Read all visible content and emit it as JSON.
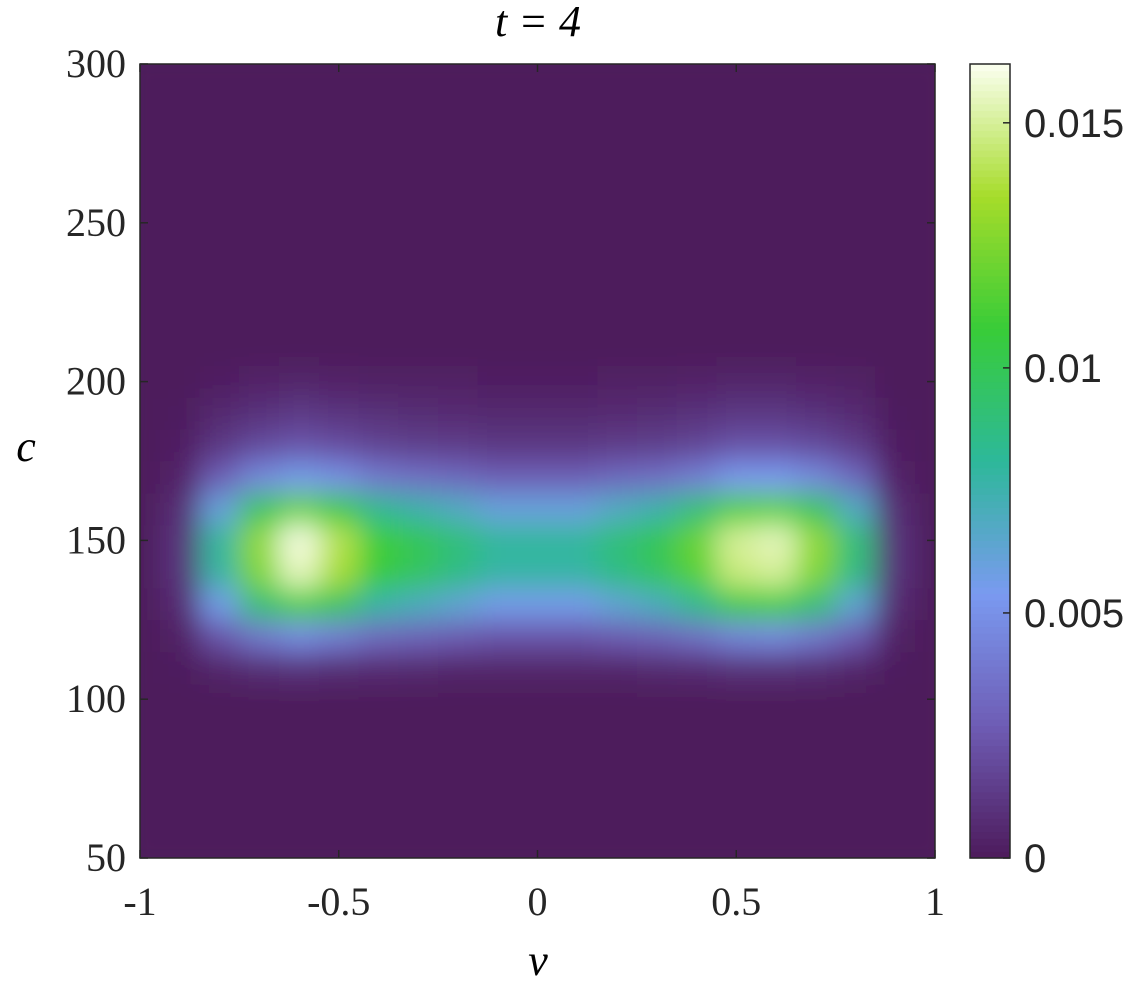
{
  "chart_data": {
    "type": "heatmap",
    "title": "t = 4",
    "xlabel": "v",
    "ylabel": "c",
    "x": [
      -1,
      -0.9,
      -0.8,
      -0.7,
      -0.6,
      -0.5,
      -0.4,
      -0.3,
      -0.2,
      -0.1,
      0,
      0.1,
      0.2,
      0.3,
      0.4,
      0.5,
      0.6,
      0.7,
      0.8,
      0.9,
      1
    ],
    "y": [
      50,
      60,
      70,
      80,
      90,
      100,
      110,
      120,
      130,
      140,
      150,
      160,
      170,
      180,
      190,
      200,
      210,
      220,
      230,
      240,
      250,
      260,
      270,
      280,
      290,
      300
    ],
    "z": [
      [
        0,
        0,
        0,
        0,
        0,
        0,
        0,
        0,
        0,
        0,
        0,
        0,
        0,
        0,
        0,
        0,
        0,
        0,
        0,
        0,
        0
      ],
      [
        0,
        0,
        0,
        0,
        0,
        0,
        0,
        0,
        0,
        0,
        0,
        0,
        0,
        0,
        0,
        0,
        0,
        0,
        0,
        0,
        0
      ],
      [
        0,
        0,
        0,
        0,
        0,
        0,
        0,
        0,
        0,
        0,
        0,
        0,
        0,
        0,
        0,
        0,
        0,
        0,
        0,
        0,
        0
      ],
      [
        0,
        0,
        0,
        0,
        0,
        0,
        0,
        0,
        0,
        0,
        0,
        0,
        0,
        0,
        0,
        0,
        0,
        0,
        0,
        0,
        0
      ],
      [
        0,
        0,
        0,
        0,
        0,
        0,
        0,
        0,
        0,
        0,
        0,
        0,
        0,
        0,
        0,
        0,
        0,
        0,
        0,
        0,
        0
      ],
      [
        0,
        0,
        0,
        0,
        0,
        0,
        0,
        0,
        0,
        0,
        0,
        0,
        0,
        0,
        0,
        0,
        0,
        0,
        0,
        0,
        0
      ],
      [
        0,
        0.0001,
        0.0005,
        0.0008,
        0.001,
        0.0008,
        0.0007,
        0.0006,
        0.0005,
        0.0005,
        0.0005,
        0.0005,
        0.0005,
        0.0006,
        0.0007,
        0.0009,
        0.0009,
        0.0008,
        0.0005,
        0.0001,
        0
      ],
      [
        0,
        0.0003,
        0.0024,
        0.0039,
        0.0048,
        0.0042,
        0.0033,
        0.003,
        0.0027,
        0.0024,
        0.0024,
        0.0024,
        0.0027,
        0.003,
        0.0036,
        0.0045,
        0.0047,
        0.0039,
        0.0027,
        0.0003,
        0
      ],
      [
        0,
        0.0007,
        0.0056,
        0.0091,
        0.0112,
        0.0098,
        0.0077,
        0.007,
        0.0063,
        0.0056,
        0.0056,
        0.0056,
        0.0063,
        0.007,
        0.0084,
        0.0105,
        0.0109,
        0.0091,
        0.0063,
        0.0007,
        0
      ],
      [
        0,
        0.001,
        0.0078,
        0.0126,
        0.0155,
        0.0136,
        0.0107,
        0.0097,
        0.0087,
        0.0078,
        0.0078,
        0.0078,
        0.0087,
        0.0097,
        0.0116,
        0.0146,
        0.015,
        0.0126,
        0.0087,
        0.001,
        0
      ],
      [
        0,
        0.001,
        0.008,
        0.013,
        0.016,
        0.014,
        0.011,
        0.01,
        0.009,
        0.008,
        0.008,
        0.008,
        0.009,
        0.01,
        0.012,
        0.015,
        0.0155,
        0.013,
        0.009,
        0.001,
        0
      ],
      [
        0,
        0.0008,
        0.006,
        0.0098,
        0.012,
        0.0105,
        0.0083,
        0.0075,
        0.0068,
        0.006,
        0.006,
        0.006,
        0.0068,
        0.0075,
        0.009,
        0.0113,
        0.0116,
        0.0098,
        0.0068,
        0.0008,
        0
      ],
      [
        0,
        0.0004,
        0.0028,
        0.0046,
        0.0056,
        0.0049,
        0.0039,
        0.0035,
        0.0032,
        0.0028,
        0.0028,
        0.0028,
        0.0032,
        0.0035,
        0.0042,
        0.0053,
        0.0054,
        0.0046,
        0.0032,
        0.0004,
        0
      ],
      [
        0,
        0.0002,
        0.0012,
        0.002,
        0.0024,
        0.0021,
        0.0017,
        0.0015,
        0.0014,
        0.0012,
        0.0012,
        0.0012,
        0.0014,
        0.0015,
        0.0018,
        0.0023,
        0.0023,
        0.002,
        0.0014,
        0.0002,
        0
      ],
      [
        0,
        0.0001,
        0.0006,
        0.001,
        0.0013,
        0.0011,
        0.0009,
        0.0008,
        0.0007,
        0.0006,
        0.0006,
        0.0006,
        0.0007,
        0.0008,
        0.001,
        0.0012,
        0.0012,
        0.001,
        0.0007,
        0.0001,
        0
      ],
      [
        0,
        0,
        0.0002,
        0.0004,
        0.0005,
        0.0004,
        0.0003,
        0.0003,
        0.0003,
        0.0002,
        0.0002,
        0.0002,
        0.0003,
        0.0003,
        0.0004,
        0.0005,
        0.0005,
        0.0004,
        0.0003,
        0,
        0
      ],
      [
        0,
        0,
        0,
        0,
        0,
        0,
        0,
        0,
        0,
        0,
        0,
        0,
        0,
        0,
        0,
        0,
        0,
        0,
        0,
        0,
        0
      ],
      [
        0,
        0,
        0,
        0,
        0,
        0,
        0,
        0,
        0,
        0,
        0,
        0,
        0,
        0,
        0,
        0,
        0,
        0,
        0,
        0,
        0
      ],
      [
        0,
        0,
        0,
        0,
        0,
        0,
        0,
        0,
        0,
        0,
        0,
        0,
        0,
        0,
        0,
        0,
        0,
        0,
        0,
        0,
        0
      ],
      [
        0,
        0,
        0,
        0,
        0,
        0,
        0,
        0,
        0,
        0,
        0,
        0,
        0,
        0,
        0,
        0,
        0,
        0,
        0,
        0,
        0
      ],
      [
        0,
        0,
        0,
        0,
        0,
        0,
        0,
        0,
        0,
        0,
        0,
        0,
        0,
        0,
        0,
        0,
        0,
        0,
        0,
        0,
        0
      ],
      [
        0,
        0,
        0,
        0,
        0,
        0,
        0,
        0,
        0,
        0,
        0,
        0,
        0,
        0,
        0,
        0,
        0,
        0,
        0,
        0,
        0
      ],
      [
        0,
        0,
        0,
        0,
        0,
        0,
        0,
        0,
        0,
        0,
        0,
        0,
        0,
        0,
        0,
        0,
        0,
        0,
        0,
        0,
        0
      ],
      [
        0,
        0,
        0,
        0,
        0,
        0,
        0,
        0,
        0,
        0,
        0,
        0,
        0,
        0,
        0,
        0,
        0,
        0,
        0,
        0,
        0
      ],
      [
        0,
        0,
        0,
        0,
        0,
        0,
        0,
        0,
        0,
        0,
        0,
        0,
        0,
        0,
        0,
        0,
        0,
        0,
        0,
        0,
        0
      ],
      [
        0,
        0,
        0,
        0,
        0,
        0,
        0,
        0,
        0,
        0,
        0,
        0,
        0,
        0,
        0,
        0,
        0,
        0,
        0,
        0,
        0
      ]
    ],
    "xlim": [
      -1,
      1
    ],
    "xticks": [
      -1,
      -0.5,
      0,
      0.5,
      1
    ],
    "ylim": [
      50,
      300
    ],
    "yticks": [
      50,
      100,
      150,
      200,
      250,
      300
    ],
    "zlim": [
      0,
      0.0162
    ],
    "zticks": [
      0,
      0.005,
      0.01,
      0.015
    ],
    "colormap": [
      "#4d1a5b",
      "#6e5cb4",
      "#7a9af0",
      "#2db89a",
      "#38cc38",
      "#a6dc2a",
      "#fbfff0"
    ]
  }
}
